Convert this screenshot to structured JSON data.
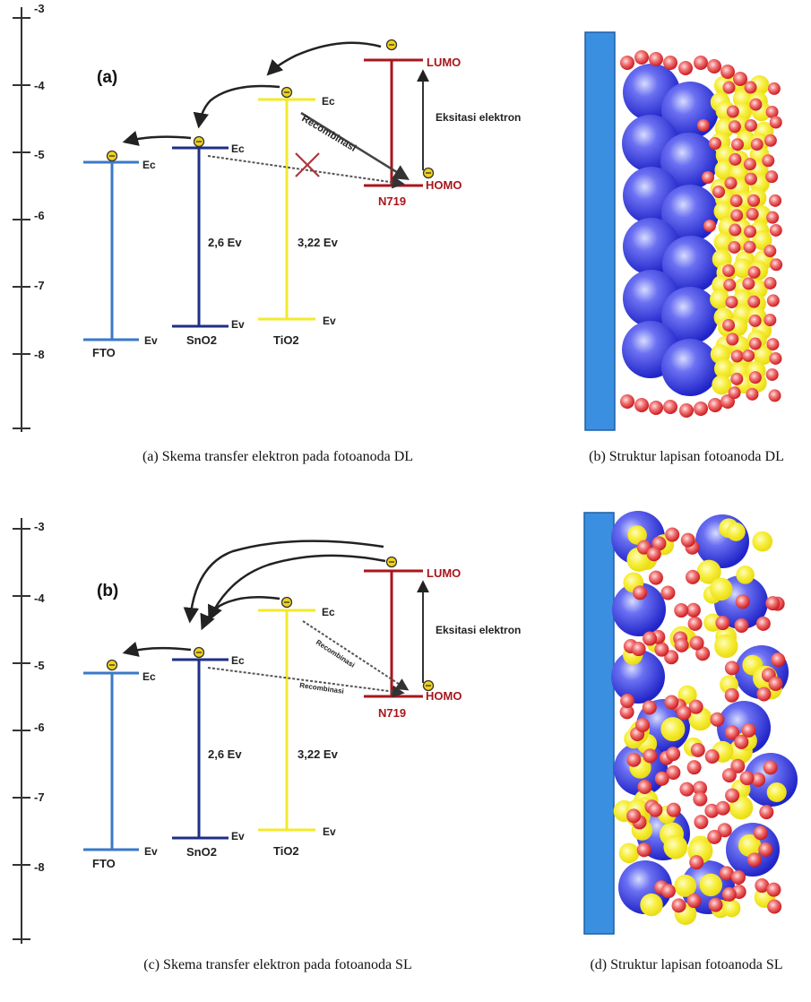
{
  "axis": {
    "ticks": [
      "-3",
      "-4",
      "-5",
      "-6",
      "-7",
      "-8"
    ]
  },
  "diagrams": [
    {
      "tag": "(a)",
      "levels": [
        {
          "material": "FTO",
          "ec": "Ec",
          "ev": "Ev",
          "gap": "",
          "color": "#3a78c8"
        },
        {
          "material": "SnO2",
          "ec": "Ec",
          "ev": "Ev",
          "gap": "2,6 Ev",
          "color": "#1d2f86"
        },
        {
          "material": "TiO2",
          "ec": "Ec",
          "ev": "Ev",
          "gap": "3,22 Ev",
          "color": "#f2ea2a"
        },
        {
          "material": "N719",
          "ec": "LUMO",
          "ev": "HOMO",
          "gap": "",
          "color": "#a8161c"
        }
      ],
      "excitation": "Eksitasi elektron",
      "recombination_labels": [
        "Recombinasi"
      ],
      "blocked": true
    },
    {
      "tag": "(b)",
      "levels": [
        {
          "material": "FTO",
          "ec": "Ec",
          "ev": "Ev",
          "gap": "",
          "color": "#3a78c8"
        },
        {
          "material": "SnO2",
          "ec": "Ec",
          "ev": "Ev",
          "gap": "2,6 Ev",
          "color": "#1d2f86"
        },
        {
          "material": "TiO2",
          "ec": "Ec",
          "ev": "Ev",
          "gap": "3,22 Ev",
          "color": "#f2ea2a"
        },
        {
          "material": "N719",
          "ec": "LUMO",
          "ev": "HOMO",
          "gap": "",
          "color": "#a8161c"
        }
      ],
      "excitation": "Eksitasi elektron",
      "recombination_labels": [
        "Recombinasi",
        "Recombinasi"
      ],
      "blocked": false
    }
  ],
  "structures": {
    "substrate_color": "#3b8fe0",
    "large_particle_color": "#3b3fe0",
    "medium_particle_color": "#f4ec2c",
    "small_particle_color": "#e4252a"
  },
  "captions": [
    "(a)  Skema transfer elektron pada fotoanoda DL",
    "(b)  Struktur lapisan fotoanoda DL",
    "(c)  Skema transfer elektron pada fotoanoda SL",
    "(d)  Struktur lapisan fotoanoda SL"
  ]
}
